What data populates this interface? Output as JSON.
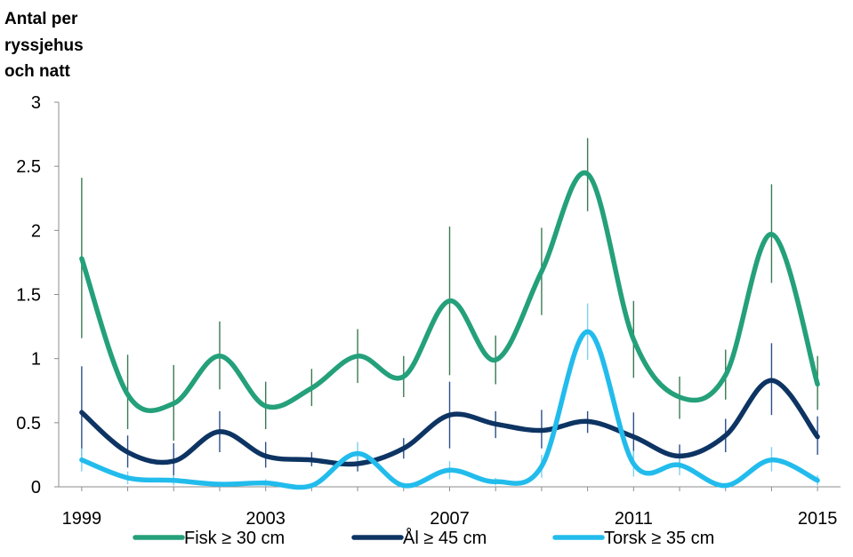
{
  "chart_data": {
    "type": "line",
    "title": "",
    "ylabel_lines": [
      "Antal per",
      "ryssjehus",
      "och natt"
    ],
    "xlabel": "",
    "x": [
      1999,
      2000,
      2001,
      2002,
      2003,
      2004,
      2005,
      2006,
      2007,
      2008,
      2009,
      2010,
      2011,
      2012,
      2013,
      2014,
      2015
    ],
    "x_ticks": [
      "1999",
      "2003",
      "2007",
      "2011",
      "2015"
    ],
    "y_ticks": [
      "0",
      "0.5",
      "1",
      "1.5",
      "2",
      "2.5",
      "3"
    ],
    "ylim": [
      0,
      3
    ],
    "grid": false,
    "legend_position": "bottom",
    "error_bar_color": "#3a7a52",
    "error_bar_color_dark": "#2b4f8a",
    "error_bar_color_light": "#7fd0f0",
    "series": [
      {
        "name": "Fisk ≥ 30 cm",
        "color": "#24a07a",
        "values": [
          1.78,
          0.72,
          0.65,
          1.02,
          0.63,
          0.77,
          1.02,
          0.86,
          1.45,
          0.99,
          1.68,
          2.44,
          1.15,
          0.7,
          0.87,
          1.97,
          0.8
        ],
        "error_low": [
          1.16,
          0.45,
          0.36,
          0.76,
          0.45,
          0.63,
          0.81,
          0.7,
          0.87,
          0.8,
          1.34,
          2.15,
          0.85,
          0.53,
          0.68,
          1.59,
          0.6
        ],
        "error_high": [
          2.41,
          1.03,
          0.95,
          1.29,
          0.82,
          0.92,
          1.23,
          1.02,
          2.03,
          1.18,
          2.02,
          2.72,
          1.45,
          0.86,
          1.07,
          2.36,
          1.02
        ]
      },
      {
        "name": "Ål ≥ 45 cm",
        "color": "#0d3463",
        "values": [
          0.58,
          0.27,
          0.2,
          0.43,
          0.24,
          0.21,
          0.18,
          0.3,
          0.56,
          0.49,
          0.44,
          0.51,
          0.39,
          0.24,
          0.4,
          0.83,
          0.39
        ],
        "error_low": [
          0.23,
          0.15,
          0.06,
          0.27,
          0.15,
          0.16,
          0.12,
          0.22,
          0.3,
          0.38,
          0.3,
          0.42,
          0.2,
          0.14,
          0.27,
          0.56,
          0.25
        ],
        "error_high": [
          0.94,
          0.4,
          0.34,
          0.59,
          0.35,
          0.27,
          0.24,
          0.38,
          0.82,
          0.59,
          0.6,
          0.59,
          0.58,
          0.33,
          0.53,
          1.12,
          0.55
        ]
      },
      {
        "name": "Torsk ≥ 35 cm",
        "color": "#22bcec",
        "values": [
          0.21,
          0.07,
          0.05,
          0.02,
          0.03,
          0.01,
          0.26,
          0.01,
          0.13,
          0.04,
          0.16,
          1.21,
          0.18,
          0.17,
          0.01,
          0.21,
          0.05
        ],
        "error_low": [
          0.12,
          0.02,
          0.01,
          0.0,
          0.0,
          0.0,
          0.17,
          0.0,
          0.06,
          0.01,
          0.07,
          0.99,
          0.08,
          0.09,
          0.0,
          0.12,
          0.01
        ],
        "error_high": [
          0.3,
          0.12,
          0.09,
          0.04,
          0.06,
          0.03,
          0.35,
          0.03,
          0.2,
          0.07,
          0.25,
          1.43,
          0.28,
          0.25,
          0.03,
          0.31,
          0.09
        ]
      }
    ]
  }
}
